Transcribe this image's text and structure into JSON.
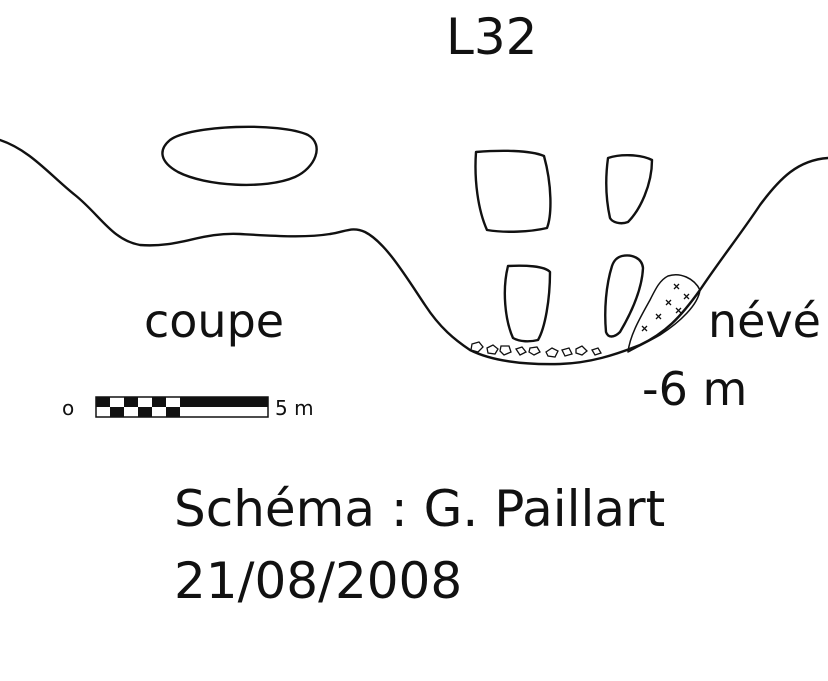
{
  "title": "L32",
  "labels": {
    "section": "coupe",
    "snow": "névé",
    "depth": "-6 m"
  },
  "scale_bar": {
    "start": "o",
    "end": "5 m"
  },
  "credits": {
    "author": "Schéma : G. Paillart",
    "date": "21/08/2008"
  }
}
